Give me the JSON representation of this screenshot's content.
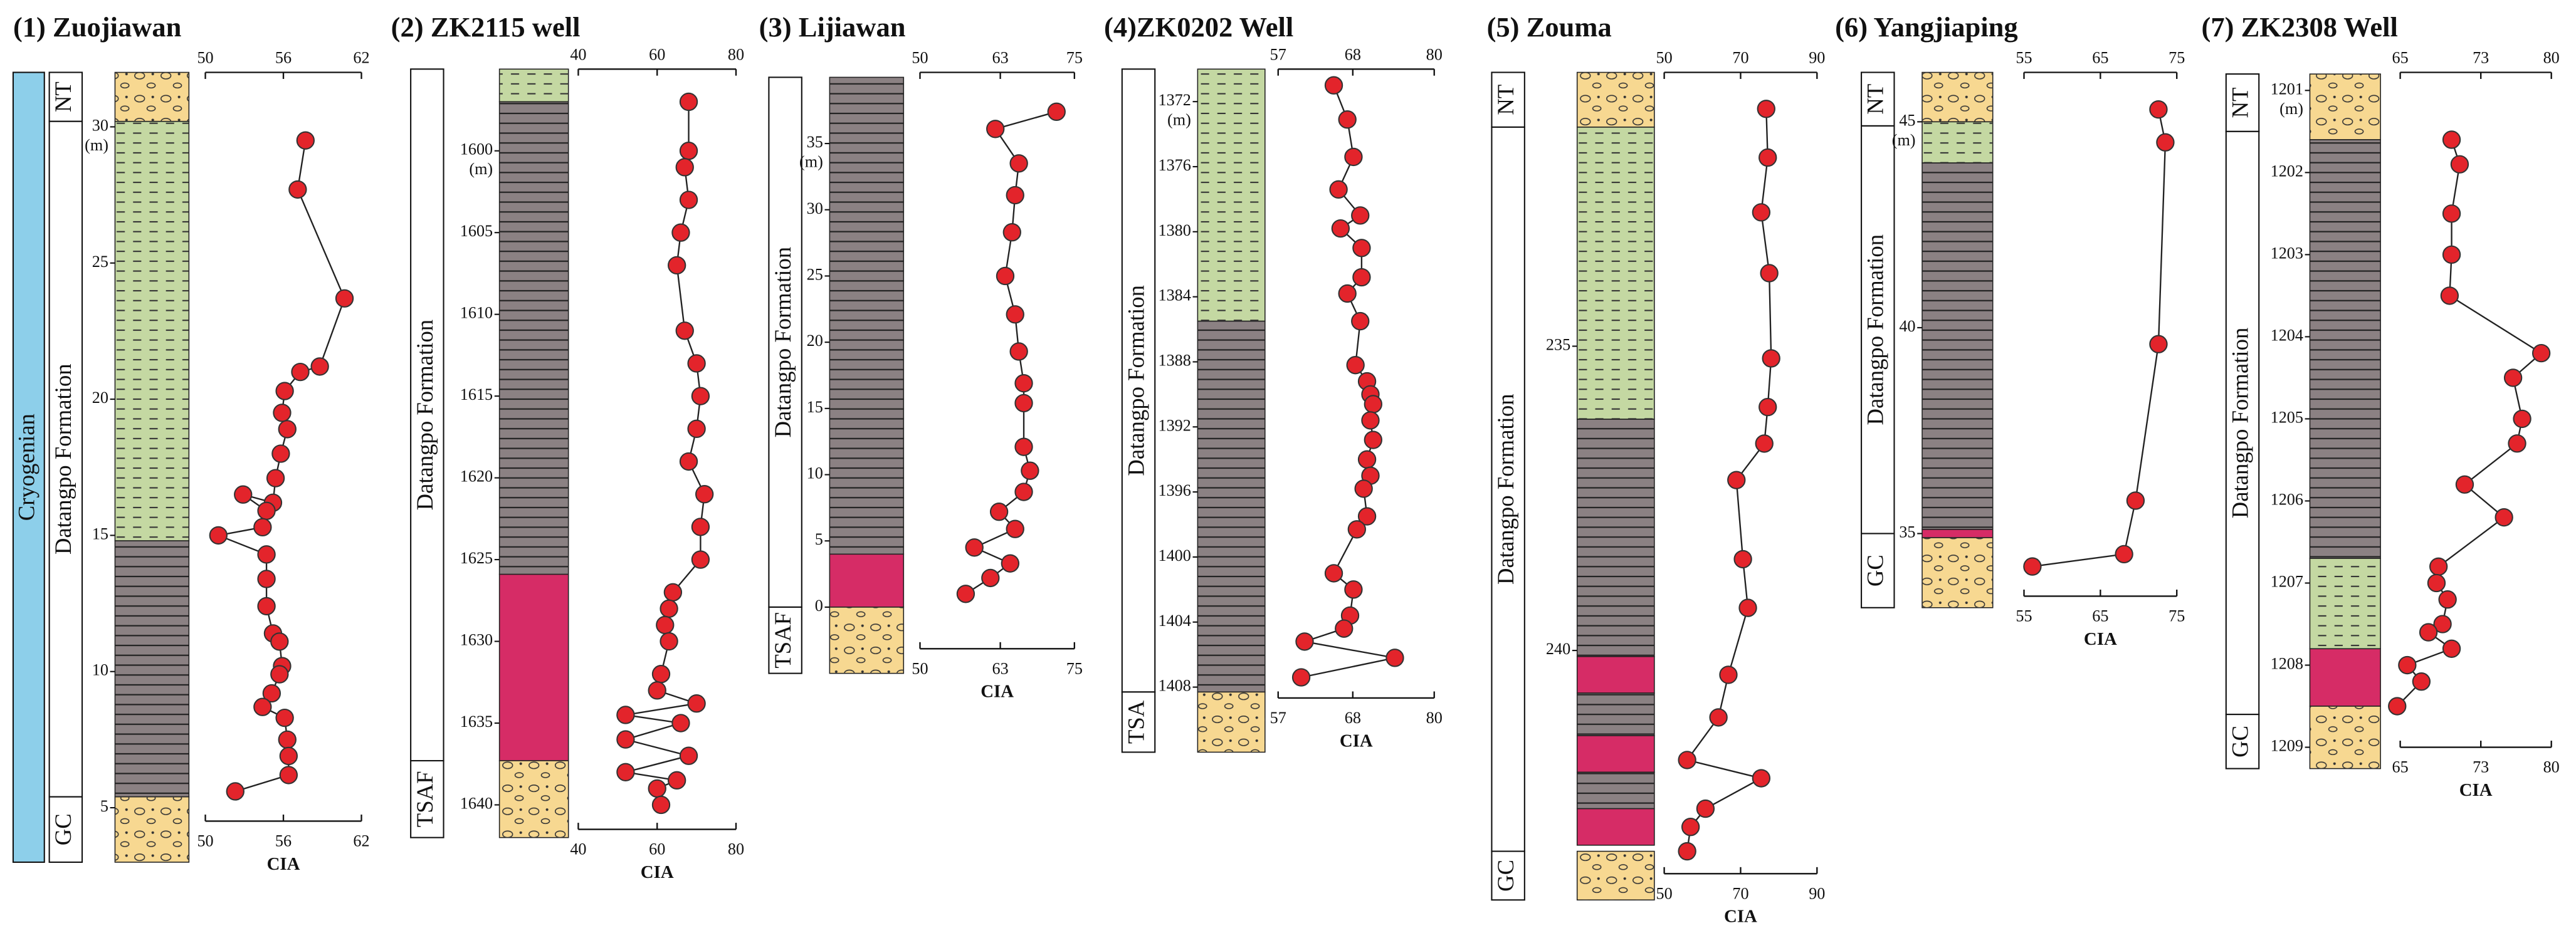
{
  "chart_data": [
    {
      "type": "line",
      "title": "(1) Zuojiawan",
      "xlabel": "CIA",
      "y_unit": "(m)",
      "color": "#e3242b",
      "xlim": [
        50,
        62
      ],
      "xticks": [
        50,
        56,
        62
      ],
      "ylim": [
        3,
        32
      ],
      "yticks": [
        5,
        10,
        15,
        20,
        25,
        30
      ],
      "x": [
        57.7,
        57.1,
        60.7,
        58.8,
        57.3,
        56.1,
        55.9,
        56.3,
        55.8,
        55.4,
        55.2,
        52.9,
        54.7,
        54.4,
        51.0,
        54.7,
        54.7,
        54.7,
        55.2,
        55.7,
        55.9,
        55.7,
        55.1,
        54.4,
        56.1,
        56.3,
        56.4,
        56.4,
        52.3
      ],
      "values": [
        29.5,
        27.7,
        23.7,
        21.2,
        21.0,
        20.3,
        19.5,
        18.9,
        18.0,
        17.1,
        16.2,
        16.5,
        15.9,
        15.3,
        15.0,
        14.3,
        13.4,
        12.4,
        11.4,
        11.1,
        10.2,
        9.9,
        9.2,
        8.7,
        8.3,
        7.5,
        6.9,
        6.2,
        5.6
      ],
      "system": {
        "label": "Cryogenian",
        "range": [
          3,
          32
        ],
        "fill": "#8dcfea"
      },
      "strata": [
        {
          "label": "NT",
          "range": [
            30.2,
            32
          ]
        },
        {
          "label": "Datangpo Formation",
          "range": [
            5.4,
            30.2
          ]
        },
        {
          "label": "GC",
          "range": [
            3,
            5.4
          ]
        }
      ],
      "lithology": [
        {
          "fill": "#f7d891",
          "hatch": "gravel",
          "range": [
            30.2,
            32
          ]
        },
        {
          "fill": "#c4d8a2",
          "hatch": "dashes",
          "range": [
            14.8,
            30.2
          ]
        },
        {
          "fill": "#8b8183",
          "hatch": "lines",
          "range": [
            5.4,
            14.8
          ]
        },
        {
          "fill": "#f7d891",
          "hatch": "gravel",
          "range": [
            3,
            5.4
          ]
        }
      ]
    },
    {
      "type": "line",
      "title": "(2) ZK2115 well",
      "xlabel": "CIA",
      "y_unit": "(m)",
      "color": "#e3242b",
      "xlim": [
        40,
        80
      ],
      "xticks": [
        40,
        60,
        80
      ],
      "ylim": [
        1642,
        1595
      ],
      "yticks": [
        1600,
        1605,
        1610,
        1615,
        1620,
        1625,
        1630,
        1635,
        1640
      ],
      "x": [
        68,
        68,
        67,
        68,
        66,
        65,
        67,
        70,
        71,
        70,
        68,
        72,
        71,
        71,
        64,
        63,
        62,
        63,
        61,
        60,
        70,
        52,
        66,
        52,
        68,
        52,
        65,
        60,
        61
      ],
      "values": [
        1597,
        1600,
        1601,
        1603,
        1605,
        1607,
        1611,
        1613,
        1615,
        1617,
        1619,
        1621,
        1623,
        1625,
        1627,
        1628,
        1629,
        1630,
        1632,
        1633,
        1633.8,
        1634.5,
        1635,
        1636,
        1637,
        1638,
        1638.5,
        1639,
        1640
      ],
      "strata": [
        {
          "label": "Datangpo Formation",
          "range": [
            1595,
            1637.3
          ]
        },
        {
          "label": "TSAF",
          "range": [
            1637.3,
            1642
          ]
        }
      ],
      "lithology": [
        {
          "fill": "#c4d8a2",
          "hatch": "dashes",
          "range": [
            1595,
            1597
          ]
        },
        {
          "fill": "#8b8183",
          "hatch": "lines",
          "range": [
            1597,
            1625.9
          ]
        },
        {
          "fill": "#d62c66",
          "hatch": "none",
          "range": [
            1625.9,
            1637.3
          ]
        },
        {
          "fill": "#f7d891",
          "hatch": "gravel",
          "range": [
            1637.3,
            1642
          ]
        }
      ]
    },
    {
      "type": "line",
      "title": "(3) Lijiawan",
      "xlabel": "CIA",
      "y_unit": "(m)",
      "color": "#e3242b",
      "xlim": [
        50,
        75
      ],
      "xticks": [
        50,
        63,
        75
      ],
      "ylim": [
        -5,
        40
      ],
      "yticks": [
        0,
        5,
        10,
        15,
        20,
        25,
        30,
        35
      ],
      "x": [
        72.1,
        62.2,
        66.0,
        65.4,
        64.9,
        63.8,
        65.4,
        66.0,
        66.8,
        66.8,
        66.8,
        67.8,
        66.8,
        62.8,
        65.4,
        58.8,
        64.6,
        61.4,
        57.4
      ],
      "values": [
        37.4,
        36.1,
        33.5,
        31.1,
        28.3,
        25.0,
        22.1,
        19.3,
        16.9,
        15.4,
        12.1,
        10.3,
        8.7,
        7.2,
        5.9,
        4.5,
        3.3,
        2.2,
        1.0
      ],
      "strata": [
        {
          "label": "Datangpo Formation",
          "range": [
            0,
            40
          ]
        },
        {
          "label": "TSAF",
          "range": [
            -5,
            0
          ]
        }
      ],
      "lithology": [
        {
          "fill": "#8b8183",
          "hatch": "lines",
          "range": [
            4,
            40
          ]
        },
        {
          "fill": "#d62c66",
          "hatch": "none",
          "range": [
            0,
            4
          ]
        },
        {
          "fill": "#f7d891",
          "hatch": "gravel",
          "range": [
            -5,
            0
          ]
        }
      ]
    },
    {
      "type": "line",
      "title": "(4)ZK0202 Well",
      "xlabel": "CIA",
      "y_unit": "(m)",
      "color": "#e3242b",
      "xlim": [
        57,
        80
      ],
      "xticks": [
        57,
        68,
        80
      ],
      "ylim": [
        1412,
        1370
      ],
      "yticks": [
        1372,
        1376,
        1380,
        1384,
        1388,
        1392,
        1396,
        1400,
        1404,
        1408
      ],
      "x": [
        65.2,
        67.2,
        68.1,
        65.9,
        69.1,
        66.2,
        69.3,
        69.3,
        67.2,
        69.1,
        68.4,
        70.1,
        70.6,
        71.0,
        70.6,
        71.0,
        70.1,
        70.6,
        69.6,
        70.1,
        68.6,
        65.2,
        68.1,
        67.6,
        66.7,
        60.9,
        74.2,
        60.4
      ],
      "values": [
        1371.0,
        1373.1,
        1375.4,
        1377.4,
        1379.0,
        1379.8,
        1381.0,
        1382.8,
        1383.8,
        1385.5,
        1388.2,
        1389.2,
        1390.0,
        1390.6,
        1391.6,
        1392.8,
        1394.0,
        1395.0,
        1395.8,
        1397.5,
        1398.3,
        1401.0,
        1402.0,
        1403.6,
        1404.4,
        1405.2,
        1406.2,
        1407.4
      ],
      "strata": [
        {
          "label": "Datangpo Formation",
          "range": [
            1370,
            1408.3
          ]
        },
        {
          "label": "TSA",
          "range": [
            1408.3,
            1412
          ]
        }
      ],
      "lithology": [
        {
          "fill": "#c4d8a2",
          "hatch": "dashes",
          "range": [
            1370,
            1385.5
          ]
        },
        {
          "fill": "#8b8183",
          "hatch": "lines",
          "range": [
            1385.5,
            1408.3
          ]
        },
        {
          "fill": "#f7d891",
          "hatch": "gravel",
          "range": [
            1408.3,
            1412
          ]
        }
      ]
    },
    {
      "type": "line",
      "title": "(5) Zouma",
      "xlabel": "CIA",
      "color": "#e3242b",
      "xlim": [
        50,
        90
      ],
      "xticks": [
        50,
        70,
        90
      ],
      "ylim": [
        244.1,
        230.5
      ],
      "yticks": [
        235,
        240
      ],
      "x": [
        76.7,
        77.1,
        75.4,
        77.5,
        78.0,
        77.1,
        76.2,
        68.9,
        70.6,
        71.9,
        66.8,
        64.2,
        56.0,
        75.4,
        60.8,
        56.9,
        56.0
      ],
      "values": [
        231.1,
        231.9,
        232.8,
        233.8,
        235.2,
        236.0,
        236.6,
        237.2,
        238.5,
        239.3,
        240.4,
        241.1,
        241.8,
        242.1,
        242.6,
        242.9,
        243.3
      ],
      "strata": [
        {
          "label": "NT",
          "range": [
            230.5,
            231.4
          ]
        },
        {
          "label": "Datangpo Formation",
          "range": [
            231.4,
            243.3
          ]
        },
        {
          "label": "GC",
          "range": [
            243.3,
            244.1
          ]
        }
      ],
      "lithology": [
        {
          "fill": "#f7d891",
          "hatch": "gravel",
          "range": [
            230.5,
            231.4
          ]
        },
        {
          "fill": "#c4d8a2",
          "hatch": "dashes",
          "range": [
            231.4,
            236.2
          ]
        },
        {
          "fill": "#8b8183",
          "hatch": "lines",
          "range": [
            236.2,
            240.1
          ]
        },
        {
          "fill": "#d62c66",
          "hatch": "none",
          "range": [
            240.1,
            240.7
          ]
        },
        {
          "fill": "#8b8183",
          "hatch": "lines",
          "range": [
            240.7,
            241.4
          ]
        },
        {
          "fill": "#d62c66",
          "hatch": "none",
          "range": [
            241.4,
            242.0
          ]
        },
        {
          "fill": "#8b8183",
          "hatch": "lines",
          "range": [
            242.0,
            242.6
          ]
        },
        {
          "fill": "#d62c66",
          "hatch": "none",
          "range": [
            242.6,
            243.2
          ]
        },
        {
          "fill": "#f7d891",
          "hatch": "gravel",
          "range": [
            243.3,
            244.1
          ]
        }
      ]
    },
    {
      "type": "line",
      "title": "(6) Yangjiaping",
      "xlabel": "CIA",
      "y_unit": "(m)",
      "color": "#e3242b",
      "xlim": [
        55,
        75
      ],
      "xticks": [
        55,
        65,
        75
      ],
      "ylim": [
        33.2,
        46.2
      ],
      "yticks": [
        35,
        40,
        45
      ],
      "x": [
        72.6,
        73.5,
        72.6,
        69.6,
        68.1,
        56.1
      ],
      "values": [
        45.3,
        44.5,
        39.6,
        35.8,
        34.5,
        34.2
      ],
      "strata": [
        {
          "label": "NT",
          "range": [
            44.9,
            46.2
          ]
        },
        {
          "label": "Datangpo Formation",
          "range": [
            35,
            44.9
          ]
        },
        {
          "label": "GC",
          "range": [
            33.2,
            35
          ]
        }
      ],
      "lithology": [
        {
          "fill": "#f7d891",
          "hatch": "gravel",
          "range": [
            45,
            46.2
          ]
        },
        {
          "fill": "#c4d8a2",
          "hatch": "dashes",
          "range": [
            44,
            45
          ]
        },
        {
          "fill": "#8b8183",
          "hatch": "lines",
          "range": [
            35.1,
            44
          ]
        },
        {
          "fill": "#d62c66",
          "hatch": "none",
          "range": [
            34.9,
            35.1
          ]
        },
        {
          "fill": "#f7d891",
          "hatch": "gravel",
          "range": [
            33.2,
            34.9
          ]
        }
      ]
    },
    {
      "type": "line",
      "title": "(7) ZK2308 Well",
      "xlabel": "CIA",
      "y_unit": "(m)",
      "color": "#e3242b",
      "xlim": [
        65,
        80
      ],
      "xticks": [
        65,
        73,
        80
      ],
      "ylim": [
        1209.26,
        1200.8
      ],
      "yticks": [
        1201,
        1202,
        1203,
        1204,
        1205,
        1206,
        1207,
        1208,
        1209
      ],
      "x": [
        70.1,
        70.9,
        70.1,
        70.1,
        69.9,
        79.0,
        76.2,
        77.1,
        76.6,
        71.4,
        75.3,
        68.8,
        68.6,
        69.7,
        69.2,
        67.8,
        70.1,
        65.7,
        67.1,
        64.7
      ],
      "values": [
        1201.6,
        1201.9,
        1202.5,
        1203.0,
        1203.5,
        1204.2,
        1204.5,
        1205.0,
        1205.3,
        1205.8,
        1206.2,
        1206.8,
        1207.0,
        1207.2,
        1207.5,
        1207.6,
        1207.8,
        1208.0,
        1208.2,
        1208.5
      ],
      "strata": [
        {
          "label": "NT",
          "range": [
            1200.8,
            1201.5
          ]
        },
        {
          "label": "Datangpo Formation",
          "range": [
            1201.5,
            1208.6
          ]
        },
        {
          "label": "GC",
          "range": [
            1208.6,
            1209.26
          ]
        }
      ],
      "lithology": [
        {
          "fill": "#f7d891",
          "hatch": "gravel",
          "range": [
            1200.8,
            1201.6
          ]
        },
        {
          "fill": "#8b8183",
          "hatch": "lines",
          "range": [
            1201.6,
            1206.7
          ]
        },
        {
          "fill": "#c4d8a2",
          "hatch": "dashes",
          "range": [
            1206.7,
            1207.8
          ]
        },
        {
          "fill": "#d62c66",
          "hatch": "none",
          "range": [
            1207.8,
            1208.5
          ]
        },
        {
          "fill": "#f7d891",
          "hatch": "gravel",
          "range": [
            1208.5,
            1209.26
          ]
        }
      ]
    }
  ]
}
